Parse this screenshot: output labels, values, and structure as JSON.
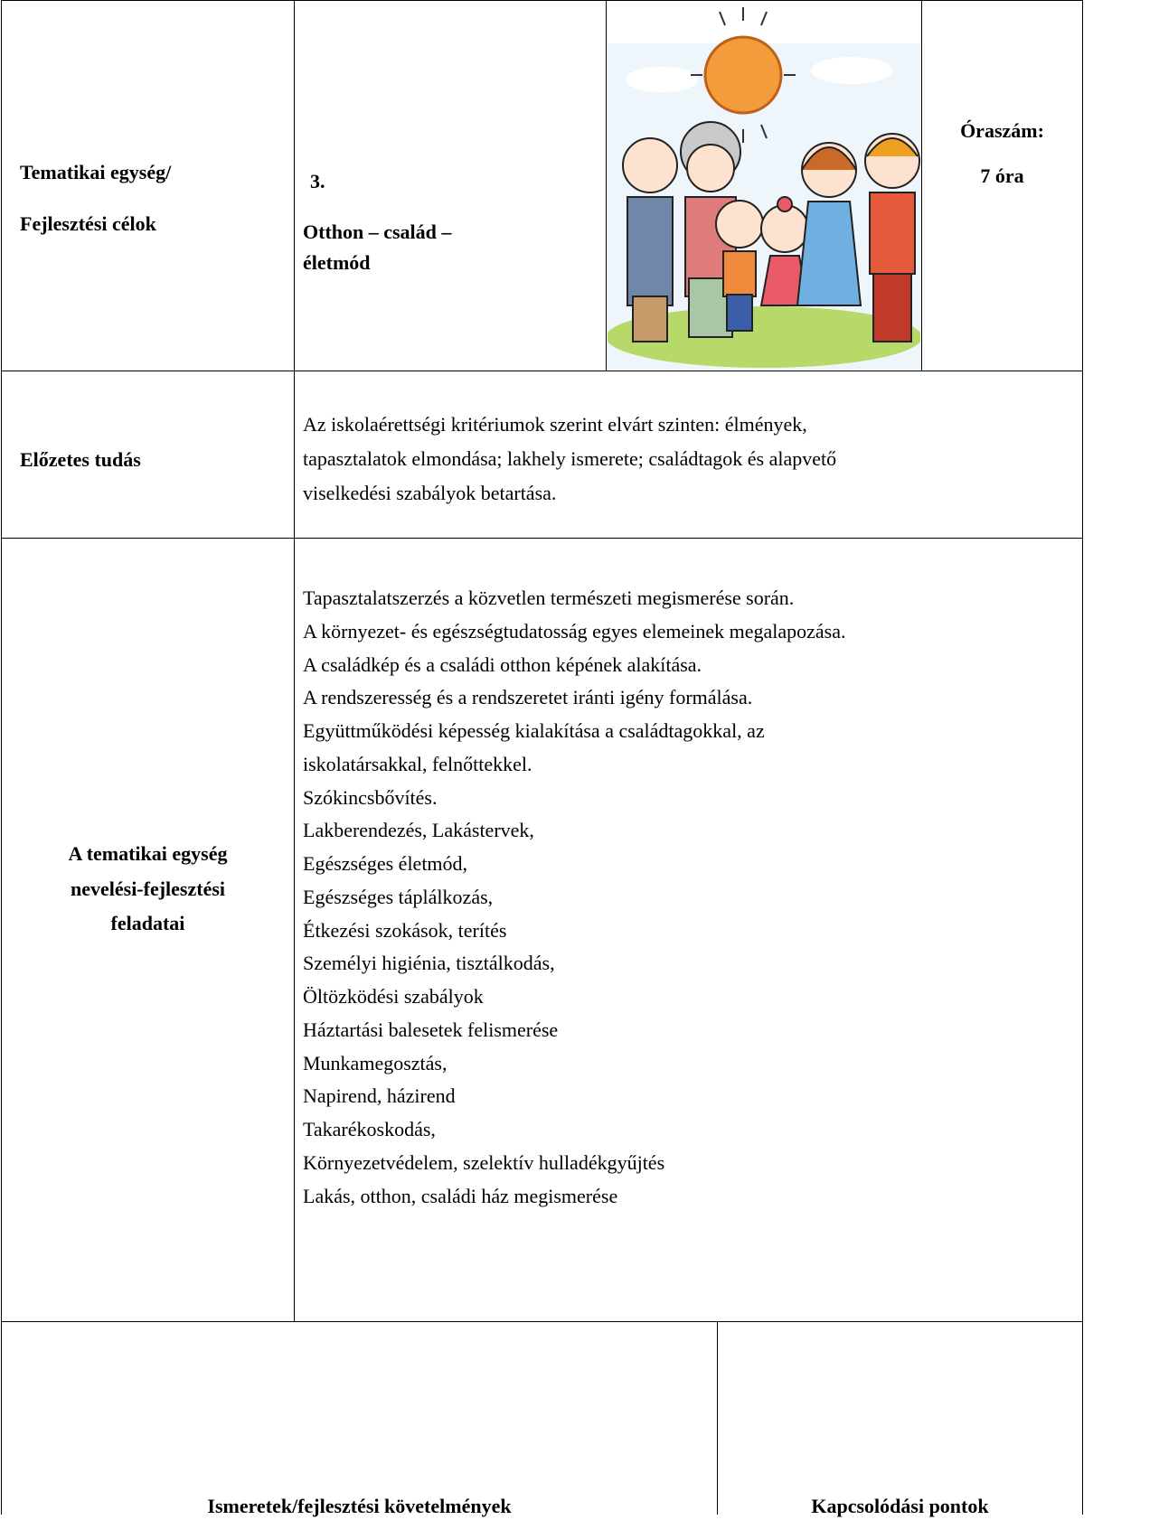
{
  "unit": {
    "label": [
      "Tematikai egység/",
      "Fejlesztési célok"
    ],
    "number": "3.",
    "title": [
      "Otthon – család –",
      "életmód"
    ],
    "hours": [
      "Óraszám:",
      "7 óra"
    ]
  },
  "prior_knowledge": {
    "label": "Előzetes tudás",
    "lines": [
      "Az iskolaérettségi kritériumok szerint elvárt szinten: élmények,",
      "tapasztalatok elmondása; lakhely ismerete; családtagok és alapvető",
      "viselkedési szabályok betartása."
    ]
  },
  "tasks": {
    "label": [
      "A tematikai egység",
      "nevelési-fejlesztési",
      "feladatai"
    ],
    "lines": [
      "Tapasztalatszerzés a közvetlen természeti megismerése során.",
      "A környezet- és egészségtudatosság egyes elemeinek megalapozása.",
      "A családkép és a családi otthon képének alakítása.",
      "A rendszeresség és a rendszeretet iránti igény formálása.",
      "Együttműködési képesség kialakítása a családtagokkal, az",
      "iskolatársakkal, felnőttekkel.",
      "Szókincsbővítés.",
      "Lakberendezés, Lakástervek,",
      "Egészséges életmód,",
      "Egészséges táplálkozás,",
      "Étkezési szokások, terítés",
      "Személyi higiénia, tisztálkodás,",
      "Öltözködési szabályok",
      "Háztartási balesetek felismerése",
      "Munkamegosztás,",
      "Napirend, házirend",
      "Takarékoskodás,",
      "Környezetvédelem, szelektív hulladékgyűjtés",
      "Lakás, otthon, családi ház megismerése"
    ]
  },
  "footer": {
    "left": "Ismeretek/fejlesztési követelmények",
    "right": "Kapcsolódási pontok"
  }
}
